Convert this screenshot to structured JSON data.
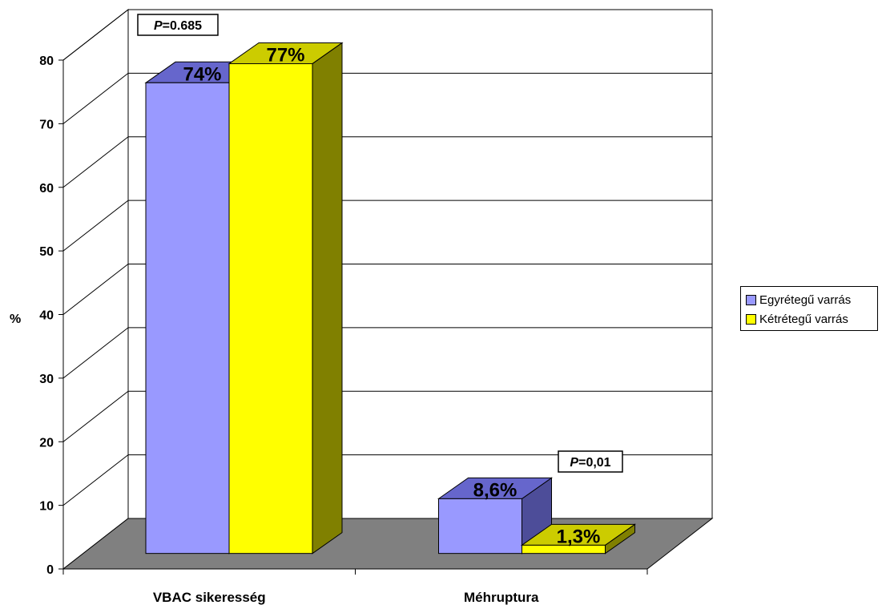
{
  "chart_data": {
    "type": "bar",
    "ylabel": "%",
    "ylim": [
      0,
      80
    ],
    "yticks": [
      0,
      10,
      20,
      30,
      40,
      50,
      60,
      70,
      80
    ],
    "categories": [
      "VBAC sikeresség",
      "Méhruptura"
    ],
    "series": [
      {
        "name": "Egyrétegű varrás",
        "values": [
          74,
          8.6
        ],
        "labels": [
          "74%",
          "8,6%"
        ],
        "color": "#9999FF",
        "top_color": "#6666CC",
        "side_color": "#4D4D99"
      },
      {
        "name": "Kétrétegű varrás",
        "values": [
          77,
          1.3
        ],
        "labels": [
          "77%",
          "1,3%"
        ],
        "color": "#FFFF00",
        "top_color": "#CCCC00",
        "side_color": "#808000"
      }
    ],
    "annotations": [
      {
        "category": 0,
        "italic": "P",
        "text": "=0.685"
      },
      {
        "category": 1,
        "italic": "P",
        "text": "=0,01"
      }
    ],
    "grid": true,
    "legend_position": "right",
    "floor_color": "#808080"
  }
}
